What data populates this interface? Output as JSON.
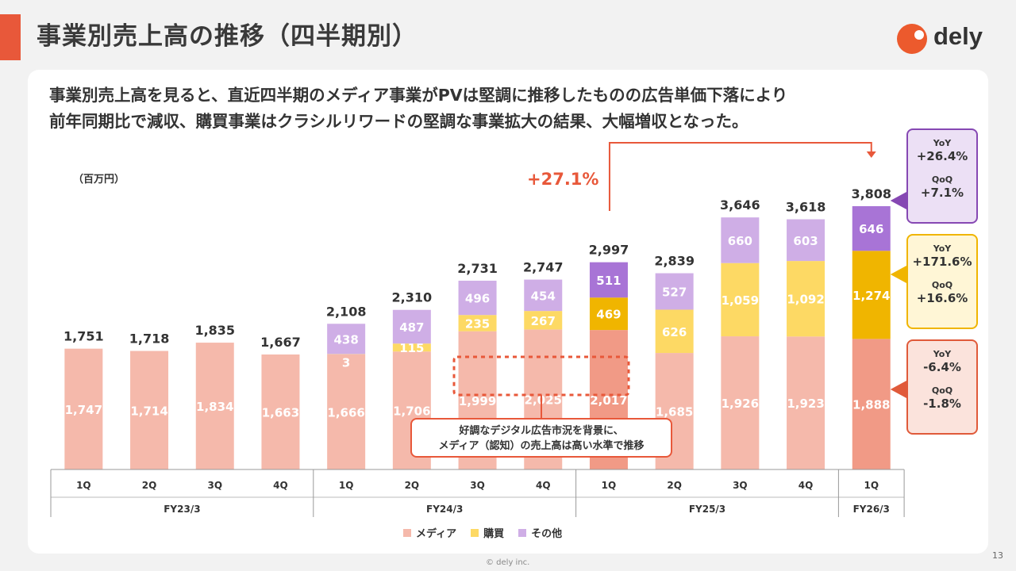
{
  "header": {
    "title": "事業別売上高の推移（四半期別）",
    "logo_text": "dely"
  },
  "headline": {
    "line1": "事業別売上高を見ると、直近四半期のメディア事業がPVは堅調に推移したものの広告単価下落により",
    "line2": "前年同期比で減収、購買事業はクラシルリワードの堅調な事業拡大の結果、大幅増収となった。"
  },
  "chart_data": {
    "type": "bar",
    "stacked": true,
    "unit": "（百万円）",
    "quarters": [
      "1Q",
      "2Q",
      "3Q",
      "4Q",
      "1Q",
      "2Q",
      "3Q",
      "4Q",
      "1Q",
      "2Q",
      "3Q",
      "4Q",
      "1Q"
    ],
    "fiscal_years": [
      {
        "label": "FY23/3",
        "span": 4
      },
      {
        "label": "FY24/3",
        "span": 4
      },
      {
        "label": "FY25/3",
        "span": 4
      },
      {
        "label": "FY26/3",
        "span": 1
      }
    ],
    "series": [
      {
        "name": "メディア",
        "key": "media",
        "values": [
          1747,
          1714,
          1834,
          1663,
          1666,
          1706,
          1999,
          2025,
          2017,
          1685,
          1926,
          1923,
          1888
        ]
      },
      {
        "name": "購買",
        "key": "buy",
        "values": [
          null,
          null,
          null,
          null,
          3,
          115,
          235,
          267,
          469,
          626,
          1059,
          1092,
          1274
        ]
      },
      {
        "name": "その他",
        "key": "other",
        "values": [
          null,
          null,
          null,
          null,
          438,
          487,
          496,
          454,
          511,
          527,
          660,
          603,
          646
        ]
      }
    ],
    "totals": [
      1751,
      1718,
      1835,
      1667,
      2108,
      2310,
      2731,
      2747,
      2997,
      2839,
      3646,
      3618,
      3808
    ],
    "ylim": [
      0,
      4200
    ],
    "colors": {
      "media": "#f5b9ab",
      "buy": "#fdd964",
      "other": "#cfaee6",
      "media_hi": "#f19a86",
      "buy_hi": "#f0b500",
      "other_hi": "#a874d6"
    }
  },
  "annotations": {
    "growth": "+27.1%",
    "callout_line1": "好調なデジタル広告市況を背景に、",
    "callout_line2": "メディア（認知）の売上高は高い水準で推移"
  },
  "stats": {
    "other": {
      "yoy_label": "YoY",
      "yoy": "+26.4%",
      "qoq_label": "QoQ",
      "qoq": "+7.1%"
    },
    "buy": {
      "yoy_label": "YoY",
      "yoy": "+171.6%",
      "qoq_label": "QoQ",
      "qoq": "+16.6%"
    },
    "media": {
      "yoy_label": "YoY",
      "yoy": "-6.4%",
      "qoq_label": "QoQ",
      "qoq": "-1.8%"
    }
  },
  "legend": [
    {
      "label": "メディア",
      "color": "#f5b9ab"
    },
    {
      "label": "購買",
      "color": "#fdd964"
    },
    {
      "label": "その他",
      "color": "#cfaee6"
    }
  ],
  "footer": {
    "page": "13",
    "copyright": "© dely inc."
  }
}
